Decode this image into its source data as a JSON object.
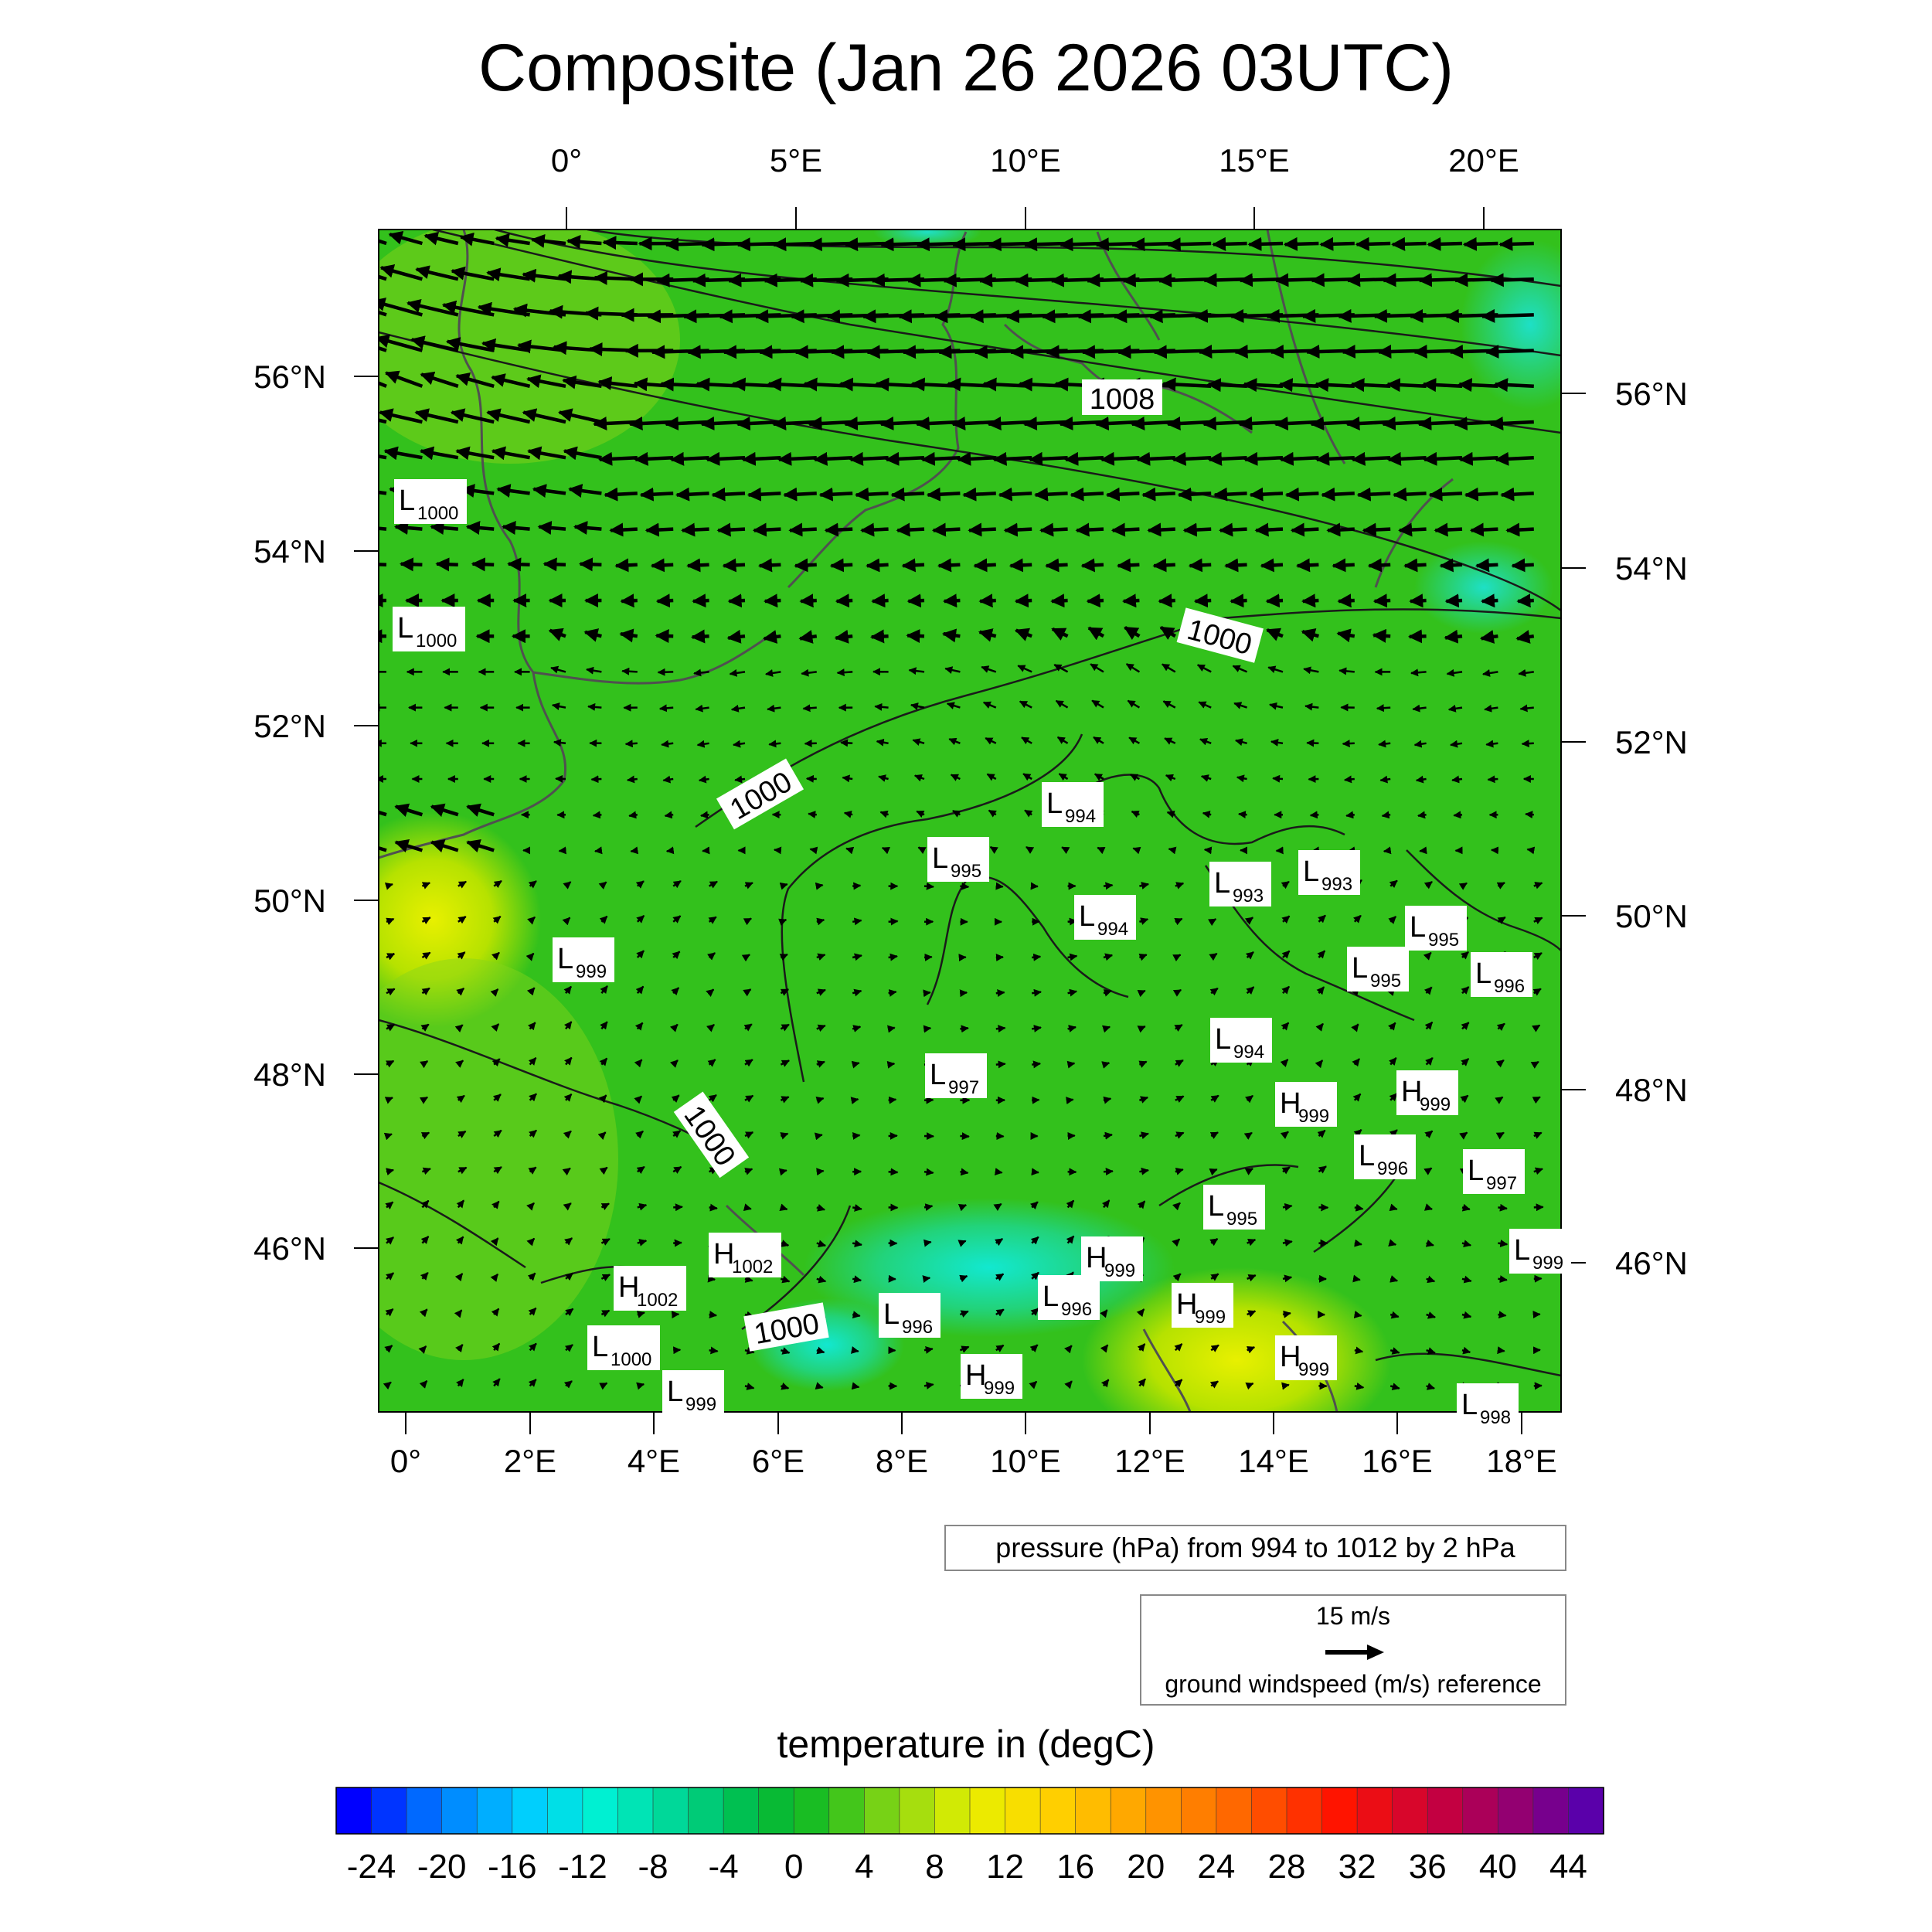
{
  "title": "Composite (Jan 26 2026 03UTC)",
  "top_lon_labels": [
    "0°",
    "5°E",
    "10°E",
    "15°E",
    "20°E"
  ],
  "bottom_lon_labels": [
    "0°",
    "2°E",
    "4°E",
    "6°E",
    "8°E",
    "10°E",
    "12°E",
    "14°E",
    "16°E",
    "18°E"
  ],
  "left_lat_labels": [
    "56°N",
    "54°N",
    "52°N",
    "50°N",
    "48°N",
    "46°N"
  ],
  "right_lat_labels": [
    "56°N",
    "54°N",
    "52°N",
    "50°N",
    "48°N",
    "46°N"
  ],
  "pressure_note": "pressure (hPa) from 994 to 1012 by 2 hPa",
  "wind_reference": {
    "speed": "15 m/s",
    "label": "ground windspeed (m/s) reference"
  },
  "colorbar": {
    "title": "temperature in (degC)",
    "tick_labels": [
      "-24",
      "-20",
      "-16",
      "-12",
      "-8",
      "-4",
      "0",
      "4",
      "8",
      "12",
      "16",
      "20",
      "24",
      "28",
      "32",
      "36",
      "40",
      "44"
    ],
    "min": -26,
    "max": 46,
    "step": 2
  },
  "contour_labels": [
    "1008",
    "1000",
    "1000",
    "1000",
    "1000"
  ],
  "pressure_centers": [
    {
      "type": "L",
      "value": "1000"
    },
    {
      "type": "L",
      "value": "1000"
    },
    {
      "type": "L",
      "value": "994"
    },
    {
      "type": "L",
      "value": "995"
    },
    {
      "type": "L",
      "value": "994"
    },
    {
      "type": "L",
      "value": "993"
    },
    {
      "type": "L",
      "value": "993"
    },
    {
      "type": "L",
      "value": "995"
    },
    {
      "type": "L",
      "value": "995"
    },
    {
      "type": "L",
      "value": "996"
    },
    {
      "type": "L",
      "value": "999"
    },
    {
      "type": "L",
      "value": "994"
    },
    {
      "type": "L",
      "value": "997"
    },
    {
      "type": "H",
      "value": "999"
    },
    {
      "type": "H",
      "value": "999"
    },
    {
      "type": "L",
      "value": "996"
    },
    {
      "type": "L",
      "value": "997"
    },
    {
      "type": "L",
      "value": "995"
    },
    {
      "type": "H",
      "value": "1002"
    },
    {
      "type": "H",
      "value": "1002"
    },
    {
      "type": "L",
      "value": "1000"
    },
    {
      "type": "L",
      "value": "999"
    },
    {
      "type": "L",
      "value": "996"
    },
    {
      "type": "H",
      "value": "999"
    },
    {
      "type": "L",
      "value": "996"
    },
    {
      "type": "H",
      "value": "999"
    },
    {
      "type": "H",
      "value": "999"
    },
    {
      "type": "H",
      "value": "999"
    },
    {
      "type": "L",
      "value": "999"
    },
    {
      "type": "L",
      "value": "998"
    }
  ]
}
